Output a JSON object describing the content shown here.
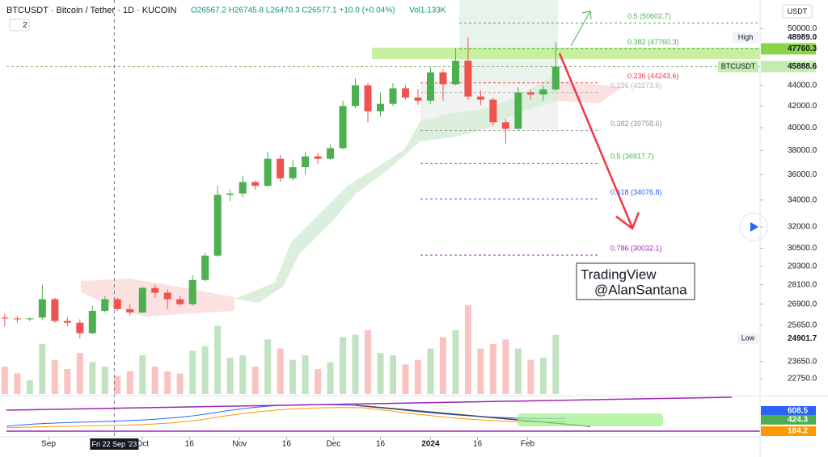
{
  "header": {
    "symbol": "BTCUSDT · Bitcoin / Tether · 1D · KUCOIN",
    "badge": "2",
    "ohlc": "O26567.2 H26745.8 L26470.3 C26577.1 +10.0 (+0.04%)",
    "volume": "Vol1.133K"
  },
  "chart_data": {
    "type": "candlestick",
    "currency": "USDT",
    "scale": "log",
    "up_color": "#4caf50",
    "down_color": "#ef5350",
    "x": [
      "2023-08-18",
      "2023-08-22",
      "2023-08-26",
      "2023-08-30",
      "2023-09-03",
      "2023-09-07",
      "2023-09-11",
      "2023-09-15",
      "2023-09-19",
      "2023-09-23",
      "2023-09-27",
      "2023-10-01",
      "2023-10-05",
      "2023-10-09",
      "2023-10-13",
      "2023-10-17",
      "2023-10-21",
      "2023-10-25",
      "2023-10-29",
      "2023-11-02",
      "2023-11-06",
      "2023-11-10",
      "2023-11-14",
      "2023-11-18",
      "2023-11-22",
      "2023-11-26",
      "2023-11-30",
      "2023-12-04",
      "2023-12-08",
      "2023-12-12",
      "2023-12-16",
      "2023-12-20",
      "2023-12-24",
      "2023-12-28",
      "2024-01-01",
      "2024-01-05",
      "2024-01-09",
      "2024-01-13",
      "2024-01-17",
      "2024-01-21",
      "2024-01-25",
      "2024-01-29",
      "2024-02-02",
      "2024-02-06",
      "2024-02-10"
    ],
    "open": [
      26100,
      26050,
      26000,
      26100,
      27200,
      25900,
      25800,
      25200,
      26500,
      27200,
      26600,
      26400,
      27900,
      27600,
      27200,
      26900,
      28400,
      30000,
      34400,
      34500,
      35400,
      35100,
      37300,
      35700,
      36600,
      37500,
      37300,
      38200,
      42000,
      44000,
      41500,
      42200,
      43700,
      42800,
      42500,
      45300,
      44100,
      46500,
      42900,
      42600,
      40500,
      39900,
      43300,
      43100,
      43600
    ],
    "high": [
      26300,
      26200,
      26100,
      28100,
      27300,
      26100,
      26000,
      26800,
      27400,
      27300,
      26900,
      28000,
      28100,
      27800,
      27400,
      28700,
      30200,
      35100,
      34800,
      35900,
      35500,
      37900,
      37600,
      37200,
      37900,
      37800,
      38500,
      42500,
      44700,
      44200,
      43300,
      44200,
      44000,
      43600,
      45800,
      45600,
      47800,
      48989.0,
      43500,
      42800,
      40800,
      43800,
      43600,
      44000,
      48500
    ],
    "low": [
      25600,
      25800,
      25900,
      25950,
      25800,
      25600,
      24901.7,
      25150,
      26400,
      26500,
      26200,
      26350,
      27300,
      26600,
      26800,
      26800,
      28300,
      29900,
      33900,
      34200,
      34800,
      35000,
      35400,
      35500,
      36000,
      36900,
      37200,
      38100,
      41800,
      40500,
      41000,
      42000,
      42600,
      42100,
      42200,
      42500,
      44000,
      42600,
      42100,
      40200,
      38600,
      39800,
      42600,
      42500,
      43400
    ],
    "close": [
      26050,
      26000,
      26050,
      27200,
      25900,
      25800,
      25200,
      26500,
      27200,
      26600,
      26400,
      27900,
      27600,
      27200,
      26900,
      28400,
      30000,
      34400,
      34500,
      35400,
      35100,
      37300,
      35700,
      36600,
      37500,
      37300,
      38200,
      42000,
      44000,
      41500,
      42200,
      43700,
      42800,
      42500,
      45300,
      44100,
      46500,
      42900,
      42600,
      40500,
      39900,
      43300,
      43100,
      43600,
      45888.6
    ],
    "volume": [
      120,
      90,
      60,
      220,
      150,
      110,
      180,
      140,
      120,
      80,
      100,
      170,
      120,
      100,
      90,
      190,
      210,
      300,
      160,
      170,
      120,
      240,
      200,
      150,
      170,
      110,
      140,
      250,
      260,
      280,
      180,
      170,
      130,
      150,
      200,
      250,
      280,
      390,
      200,
      220,
      240,
      200,
      150,
      160,
      260
    ],
    "xlim": [
      "2023-08-17",
      "2024-04-15"
    ],
    "xticks": [
      {
        "value": "2023-09-01",
        "label": "Sep"
      },
      {
        "value": "2023-10-01",
        "label": "Oct"
      },
      {
        "value": "2023-10-16",
        "label": "16"
      },
      {
        "value": "2023-11-01",
        "label": "Nov"
      },
      {
        "value": "2023-11-16",
        "label": "16"
      },
      {
        "value": "2023-12-01",
        "label": "Dec"
      },
      {
        "value": "2023-12-16",
        "label": "16"
      },
      {
        "value": "2024-01-01",
        "label": "2024"
      },
      {
        "value": "2024-01-16",
        "label": "16"
      },
      {
        "value": "2024-02-01",
        "label": "Feb"
      }
    ],
    "ylim": [
      21900,
      53300
    ],
    "yticks": [
      {
        "value": 50000,
        "label": "50000.0"
      },
      {
        "value": 44000,
        "label": "44000.0"
      },
      {
        "value": 42000,
        "label": "42000.0"
      },
      {
        "value": 40000,
        "label": "40000.0"
      },
      {
        "value": 38000,
        "label": "38000.0"
      },
      {
        "value": 36000,
        "label": "36000.0"
      },
      {
        "value": 34000,
        "label": "34000.0"
      },
      {
        "value": 32000,
        "label": "32000.0"
      },
      {
        "value": 30500,
        "label": "30500.0"
      },
      {
        "value": 29300,
        "label": "29300.0"
      },
      {
        "value": 28100,
        "label": "28100.0"
      },
      {
        "value": 26900,
        "label": "26900.0"
      },
      {
        "value": 25650,
        "label": "25650.0"
      },
      {
        "value": 23650,
        "label": "23650.0"
      },
      {
        "value": 22750,
        "label": "22750.0"
      }
    ],
    "price_labels": [
      {
        "name": "High",
        "value": 48989.0,
        "label": "48989.0",
        "color": "#ffffff",
        "text_color": "#131722"
      },
      {
        "value": 47760.3,
        "label": "47760.3",
        "color": "#8bd448",
        "text_color": "#131722"
      },
      {
        "name": "BTCUSDT",
        "value": 45888.6,
        "label": "45888.6",
        "color": "#c5ecb0",
        "text_color": "#131722"
      },
      {
        "name": "Low",
        "value": 24901.7,
        "label": "24901.7",
        "color": "#ffffff",
        "text_color": "#131722"
      }
    ],
    "fib_levels": [
      {
        "value": 50602.7,
        "label": "0.5 (50602.7)",
        "color": "#4caf50"
      },
      {
        "value": 47760.3,
        "label": "0.382 (47760.3)",
        "color": "#4caf50"
      },
      {
        "value": 44243.6,
        "label": "0.236 (44243.6)",
        "color": "#f23645"
      },
      {
        "value": 43273.6,
        "label": "0.236 (43273.6)",
        "color": "#b2b5be"
      },
      {
        "value": 39758.6,
        "label": "0.382 (39758.6)",
        "color": "#9598a1"
      },
      {
        "value": 36917.7,
        "label": "0.5 (36917.7)",
        "color": "#4caf50"
      },
      {
        "value": 34076.8,
        "label": "0.618 (34076.8)",
        "color": "#2962ff"
      },
      {
        "value": 30032.1,
        "label": "0.786 (30032.1)",
        "color": "#9c27b0"
      }
    ],
    "crosshair": {
      "x": "2023-09-22",
      "label": "Fri 22 Sep '23"
    },
    "watermark": [
      "TradingView",
      "@AlanSantana"
    ],
    "macd": {
      "ylim": [
        65,
        931
      ],
      "labels": [
        {
          "value": 608.5,
          "color": "#2962ff"
        },
        {
          "value": 424.3,
          "color": "#4caf50"
        },
        {
          "value": 184.2,
          "color": "#ff9800"
        }
      ]
    }
  }
}
